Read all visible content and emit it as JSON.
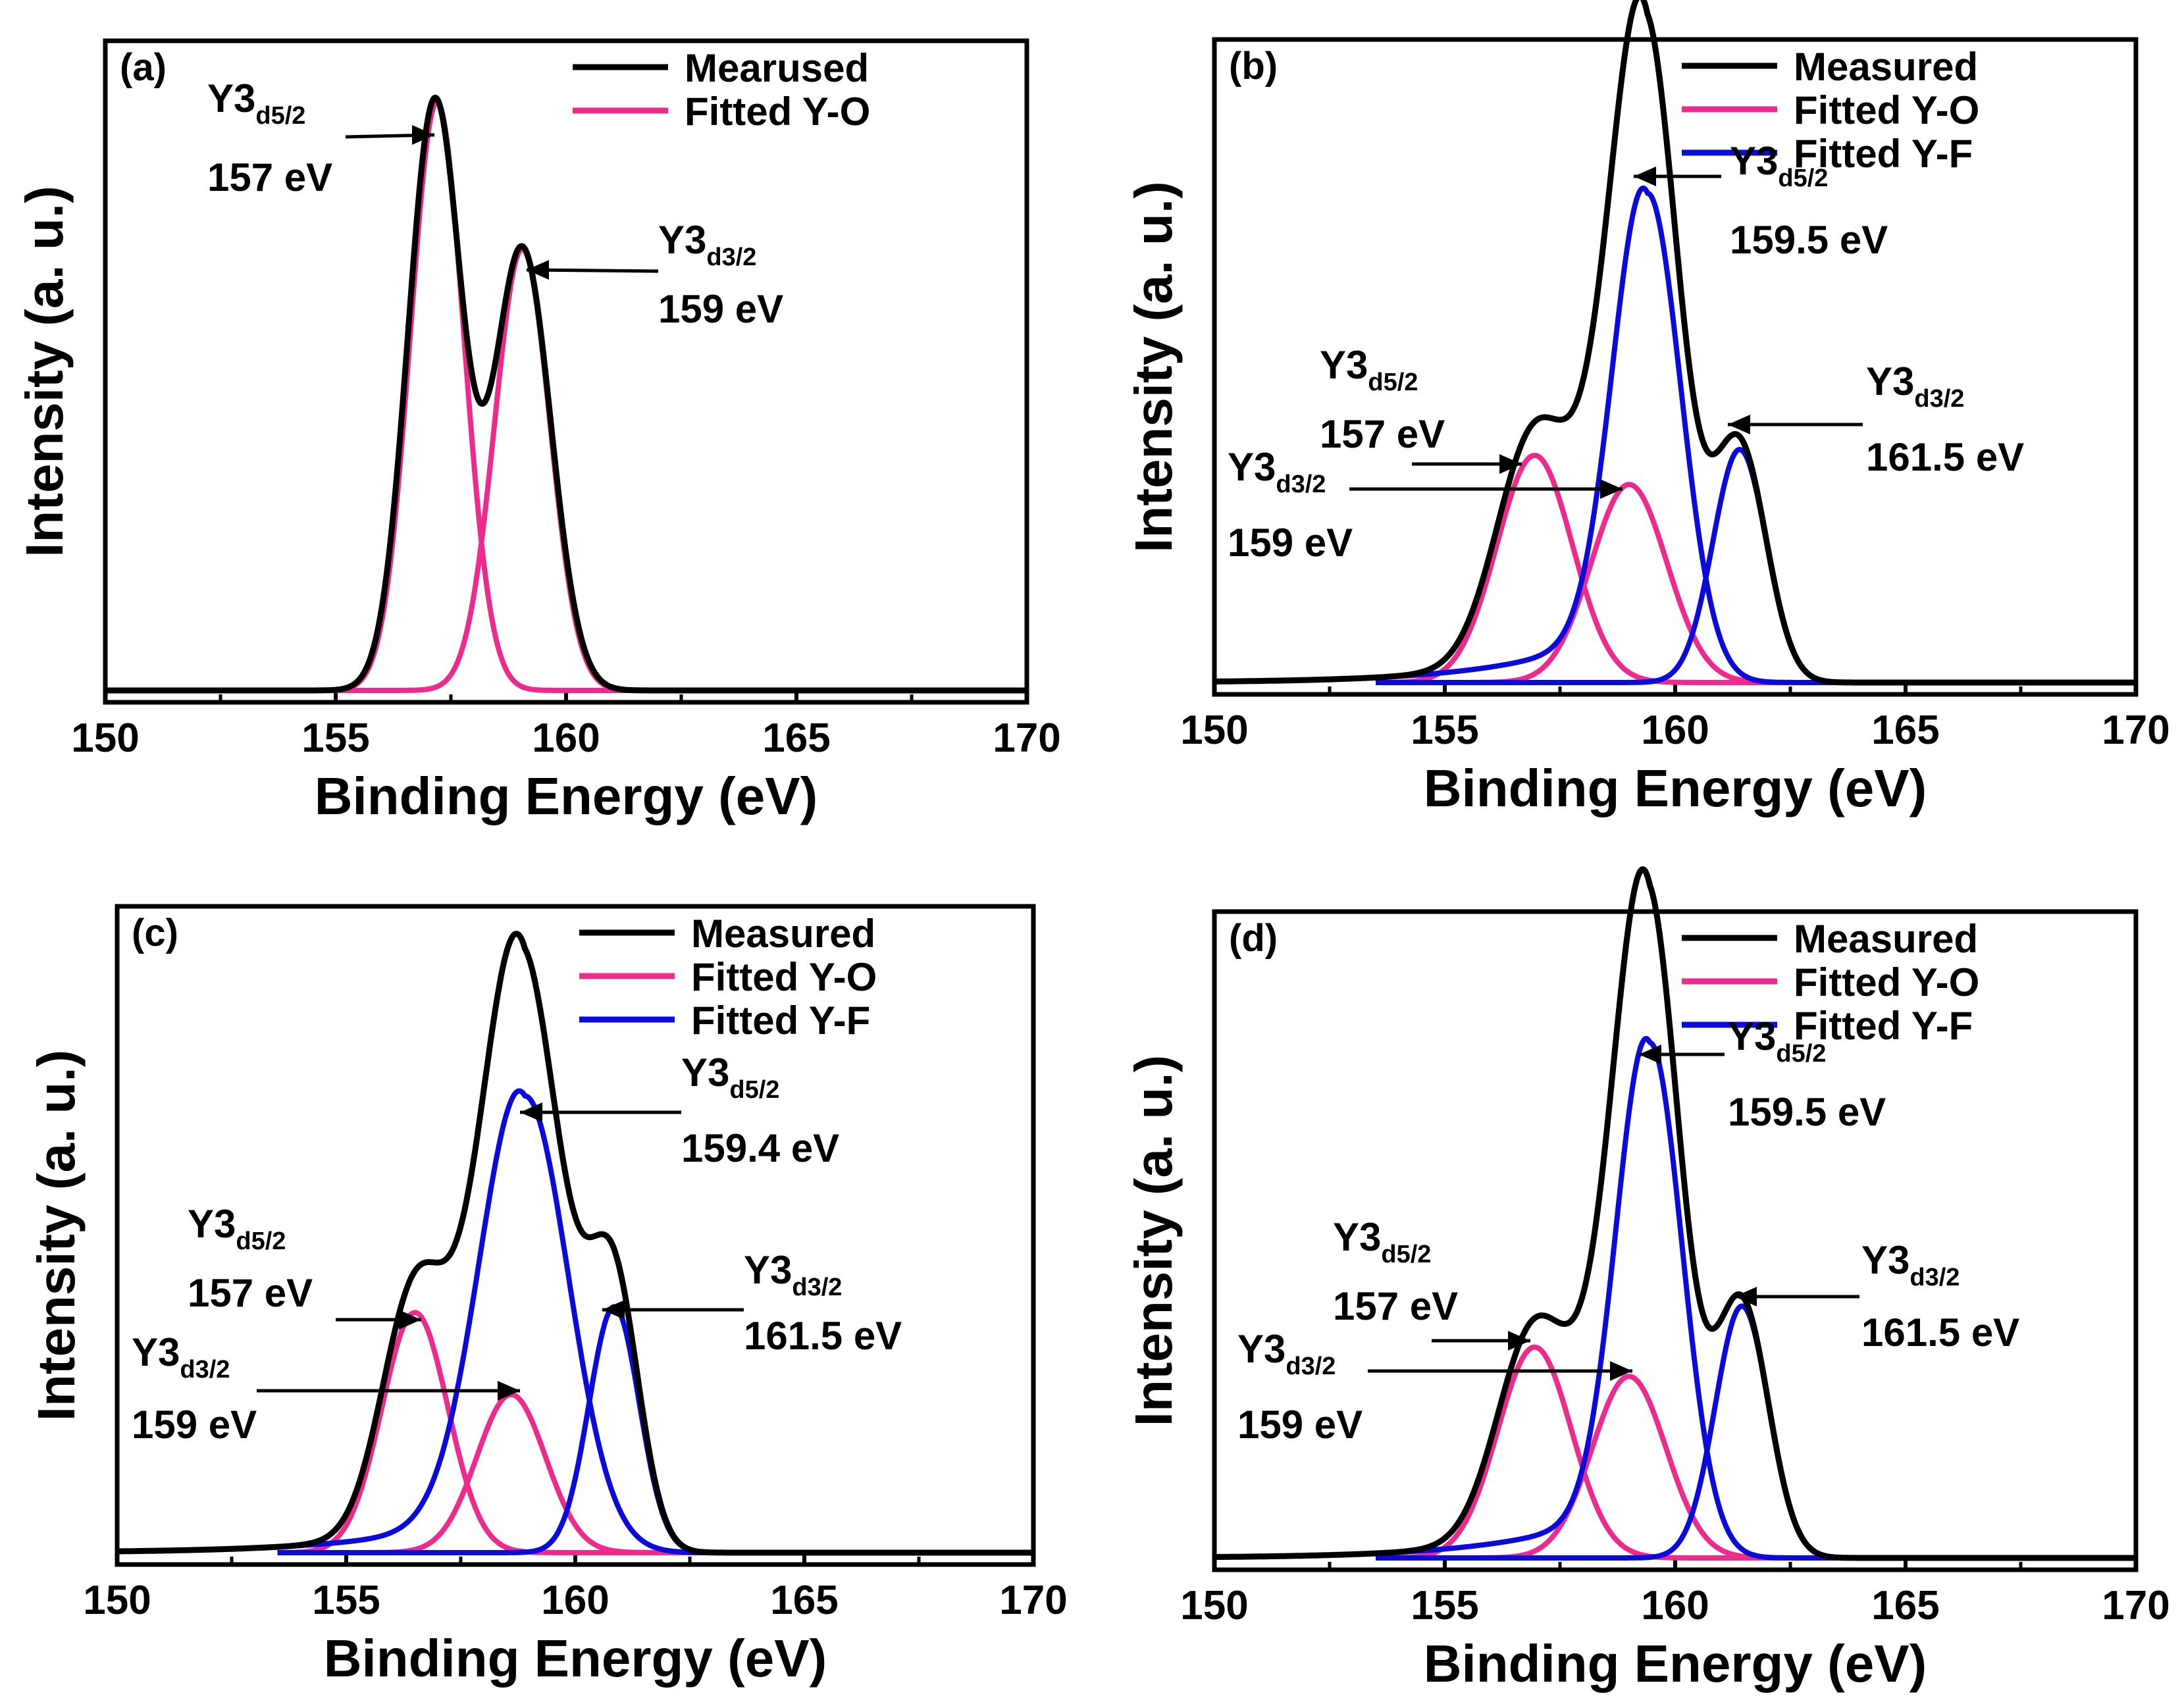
{
  "figure": {
    "panels": [
      {
        "label": "(a)",
        "xlabel": "Binding Energy (eV)",
        "ylabel": "Intensity (a. u.)",
        "legend": [
          "Mearused",
          "Fitted Y-O"
        ],
        "annotations": [
          {
            "main": "Y3",
            "sub": "d5/2",
            "energy": "157 eV"
          },
          {
            "main": "Y3",
            "sub": "d3/2",
            "energy": "159 eV"
          }
        ]
      },
      {
        "label": "(b)",
        "xlabel": "Binding Energy (eV)",
        "ylabel": "Intensity (a. u.)",
        "legend": [
          "Measured",
          "Fitted Y-O",
          "Fitted Y-F"
        ],
        "annotations": [
          {
            "main": "Y3",
            "sub": "d5/2",
            "energy": "159.5 eV"
          },
          {
            "main": "Y3",
            "sub": "d3/2",
            "energy": "161.5 eV"
          },
          {
            "main": "Y3",
            "sub": "d5/2",
            "energy": "157 eV"
          },
          {
            "main": "Y3",
            "sub": "d3/2",
            "energy": "159 eV"
          }
        ]
      },
      {
        "label": "(c)",
        "xlabel": "Binding Energy (eV)",
        "ylabel": "Intensity (a. u.)",
        "legend": [
          "Measured",
          "Fitted Y-O",
          "Fitted Y-F"
        ],
        "annotations": [
          {
            "main": "Y3",
            "sub": "d5/2",
            "energy": "159.4 eV"
          },
          {
            "main": "Y3",
            "sub": "d3/2",
            "energy": "161.5 eV"
          },
          {
            "main": "Y3",
            "sub": "d5/2",
            "energy": "157 eV"
          },
          {
            "main": "Y3",
            "sub": "d3/2",
            "energy": "159 eV"
          }
        ]
      },
      {
        "label": "(d)",
        "xlabel": "Binding Energy (eV)",
        "ylabel": "Intensity (a. u.)",
        "legend": [
          "Measured",
          "Fitted Y-O",
          "Fitted Y-F"
        ],
        "annotations": [
          {
            "main": "Y3",
            "sub": "d5/2",
            "energy": "159.5 eV"
          },
          {
            "main": "Y3",
            "sub": "d3/2",
            "energy": "161.5 eV"
          },
          {
            "main": "Y3",
            "sub": "d5/2",
            "energy": "157 eV"
          },
          {
            "main": "Y3",
            "sub": "d3/2",
            "energy": "159 eV"
          }
        ]
      }
    ]
  },
  "colors": {
    "measured": "#000000",
    "fitted_yo": "#ee2a8c",
    "fitted_yf": "#0a0adc"
  },
  "chart_data": [
    {
      "type": "line",
      "title": "(a)",
      "xlabel": "Binding Energy (eV)",
      "ylabel": "Intensity (a. u.)",
      "xlim": [
        150,
        170
      ],
      "xticks": [
        150,
        155,
        160,
        165,
        170
      ],
      "ylim": [
        0,
        1.07
      ],
      "series": [
        {
          "name": "Mearused",
          "color": "#000000",
          "role": "measured",
          "components": [
            {
              "center": 157.15,
              "height": 1.0,
              "sigma": 0.58
            },
            {
              "center": 159.05,
              "height": 0.75,
              "sigma": 0.62
            }
          ]
        },
        {
          "name": "Fitted Y-O",
          "color": "#ee2a8c",
          "role": "fit",
          "components": [
            {
              "center": 157.2,
              "height": 1.0,
              "sigma": 0.58
            }
          ]
        },
        {
          "name": "Fitted Y-O",
          "color": "#ee2a8c",
          "role": "fit",
          "components": [
            {
              "center": 159.05,
              "height": 0.75,
              "sigma": 0.6
            }
          ]
        }
      ]
    },
    {
      "type": "line",
      "title": "(b)",
      "xlabel": "Binding Energy (eV)",
      "ylabel": "Intensity (a. u.)",
      "xlim": [
        150,
        170
      ],
      "xticks": [
        150,
        155,
        160,
        165,
        170
      ],
      "ylim": [
        0,
        1.07
      ],
      "series": [
        {
          "name": "Measured",
          "color": "#000000",
          "role": "measured",
          "components": [
            {
              "center": 156.95,
              "height": 0.39,
              "sigma": 0.82
            },
            {
              "center": 159.0,
              "height": 0.34,
              "sigma": 0.82
            },
            {
              "center": 159.4,
              "height": 0.84,
              "sigma": 0.72,
              "tail": 2.2,
              "tailH": 0.25
            },
            {
              "center": 161.4,
              "height": 0.4,
              "sigma": 0.58
            }
          ]
        },
        {
          "name": "Fitted Y-O",
          "color": "#ee2a8c",
          "role": "fit",
          "components": [
            {
              "center": 156.95,
              "height": 0.39,
              "sigma": 0.82
            }
          ]
        },
        {
          "name": "Fitted Y-O",
          "color": "#ee2a8c",
          "role": "fit",
          "components": [
            {
              "center": 159.0,
              "height": 0.34,
              "sigma": 0.82
            }
          ]
        },
        {
          "name": "Fitted Y-F",
          "color": "#0a0adc",
          "role": "fit",
          "components": [
            {
              "center": 159.4,
              "height": 0.84,
              "sigma": 0.72,
              "tail": 2.2,
              "tailH": 0.25
            }
          ]
        },
        {
          "name": "Fitted Y-F",
          "color": "#0a0adc",
          "role": "fit",
          "components": [
            {
              "center": 161.4,
              "height": 0.4,
              "sigma": 0.58
            }
          ]
        }
      ]
    },
    {
      "type": "line",
      "title": "(c)",
      "xlabel": "Binding Energy (eV)",
      "ylabel": "Intensity (a. u.)",
      "xlim": [
        150,
        170
      ],
      "xticks": [
        150,
        155,
        160,
        165,
        170
      ],
      "ylim": [
        0,
        1.07
      ],
      "series": [
        {
          "name": "Measured",
          "color": "#000000",
          "role": "measured",
          "components": [
            {
              "center": 156.5,
              "height": 0.41,
              "sigma": 0.72
            },
            {
              "center": 158.6,
              "height": 0.27,
              "sigma": 0.75
            },
            {
              "center": 158.9,
              "height": 0.78,
              "sigma": 0.95,
              "tail": 2.4,
              "tailH": 0.2
            },
            {
              "center": 160.85,
              "height": 0.42,
              "sigma": 0.55
            }
          ]
        },
        {
          "name": "Fitted Y-O",
          "color": "#ee2a8c",
          "role": "fit",
          "components": [
            {
              "center": 156.5,
              "height": 0.41,
              "sigma": 0.72
            }
          ]
        },
        {
          "name": "Fitted Y-O",
          "color": "#ee2a8c",
          "role": "fit",
          "components": [
            {
              "center": 158.6,
              "height": 0.27,
              "sigma": 0.75
            }
          ]
        },
        {
          "name": "Fitted Y-F",
          "color": "#0a0adc",
          "role": "fit",
          "components": [
            {
              "center": 158.9,
              "height": 0.78,
              "sigma": 0.95,
              "tail": 2.4,
              "tailH": 0.2
            }
          ]
        },
        {
          "name": "Fitted Y-F",
          "color": "#0a0adc",
          "role": "fit",
          "components": [
            {
              "center": 160.85,
              "height": 0.42,
              "sigma": 0.55
            }
          ]
        }
      ]
    },
    {
      "type": "line",
      "title": "(d)",
      "xlabel": "Binding Energy (eV)",
      "ylabel": "Intensity (a. u.)",
      "xlim": [
        150,
        170
      ],
      "xticks": [
        150,
        155,
        160,
        165,
        170
      ],
      "ylim": [
        0,
        1.07
      ],
      "series": [
        {
          "name": "Measured",
          "color": "#000000",
          "role": "measured",
          "components": [
            {
              "center": 156.95,
              "height": 0.36,
              "sigma": 0.8
            },
            {
              "center": 159.0,
              "height": 0.31,
              "sigma": 0.8
            },
            {
              "center": 159.45,
              "height": 0.88,
              "sigma": 0.7,
              "tail": 2.2,
              "tailH": 0.22
            },
            {
              "center": 161.45,
              "height": 0.43,
              "sigma": 0.58
            }
          ]
        },
        {
          "name": "Fitted Y-O",
          "color": "#ee2a8c",
          "role": "fit",
          "components": [
            {
              "center": 156.95,
              "height": 0.36,
              "sigma": 0.8
            }
          ]
        },
        {
          "name": "Fitted Y-O",
          "color": "#ee2a8c",
          "role": "fit",
          "components": [
            {
              "center": 159.0,
              "height": 0.31,
              "sigma": 0.8
            }
          ]
        },
        {
          "name": "Fitted Y-F",
          "color": "#0a0adc",
          "role": "fit",
          "components": [
            {
              "center": 159.45,
              "height": 0.88,
              "sigma": 0.7,
              "tail": 2.2,
              "tailH": 0.22
            }
          ]
        },
        {
          "name": "Fitted Y-F",
          "color": "#0a0adc",
          "role": "fit",
          "components": [
            {
              "center": 161.45,
              "height": 0.43,
              "sigma": 0.58
            }
          ]
        }
      ]
    }
  ]
}
